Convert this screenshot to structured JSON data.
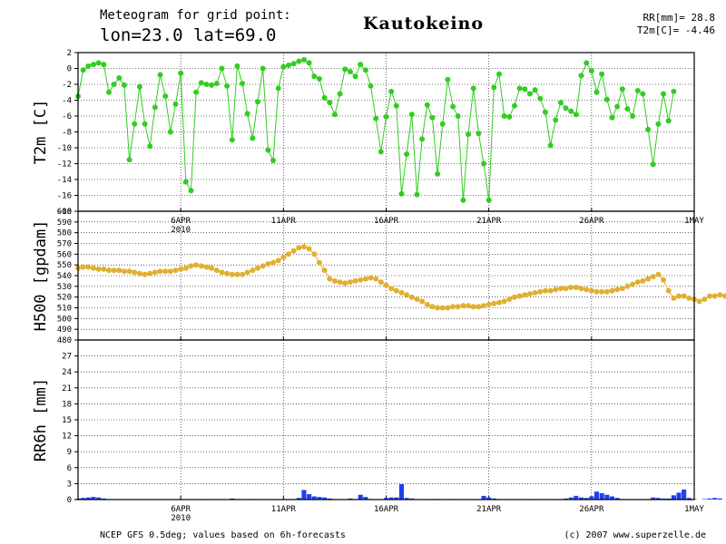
{
  "header": {
    "line1": "Meteogram for grid point:",
    "line2": "lon=23.0 lat=69.0",
    "location": "Kautokeino",
    "rr_label": "RR[mm]= 28.8",
    "t2m_label": "T2m[C]= -4.46"
  },
  "footer": {
    "left": "NCEP GFS 0.5deg; values based on 6h-forecasts",
    "right": "(c) 2007 www.superzelle.de"
  },
  "colors": {
    "t2m": "#33cc22",
    "h500": "#e0b030",
    "rr": "#1f3ff0"
  },
  "chart_data": [
    {
      "type": "line",
      "ylabel": "T2m [C]",
      "ylim": [
        -18,
        2
      ],
      "yticks": [
        2,
        0,
        -2,
        -4,
        -6,
        -8,
        -10,
        -12,
        -14,
        -16,
        -18
      ],
      "grid": true,
      "x_unit": "day of April 2010 (6h steps)",
      "xticks": [
        {
          "day": 6,
          "label": "6APR",
          "sublabel": "2010"
        },
        {
          "day": 11,
          "label": "11APR",
          "sublabel": ""
        },
        {
          "day": 16,
          "label": "16APR",
          "sublabel": ""
        },
        {
          "day": 21,
          "label": "21APR",
          "sublabel": ""
        },
        {
          "day": 26,
          "label": "26APR",
          "sublabel": ""
        },
        {
          "day": 31,
          "label": "1MAY",
          "sublabel": ""
        }
      ],
      "x_start": 1.0,
      "x_step": 0.25,
      "series": [
        {
          "values": [
            -3.5,
            -0.2,
            0.3,
            0.5,
            0.7,
            0.5,
            -3.0,
            -2.0,
            -1.2,
            -2.1,
            -11.5,
            -7.0,
            -2.3,
            -7.0,
            -9.8,
            -4.9,
            -0.8,
            -3.5,
            -8.0,
            -4.5,
            -0.6,
            -14.3,
            -15.4,
            -3.0,
            -1.8,
            -2.0,
            -2.1,
            -1.9,
            0.0,
            -2.2,
            -9.0,
            0.3,
            -1.9,
            -5.7,
            -8.8,
            -4.2,
            0.0,
            -10.3,
            -11.6,
            -2.5,
            0.2,
            0.4,
            0.6,
            0.9,
            1.1,
            0.7,
            -1.0,
            -1.3,
            -3.7,
            -4.3,
            -5.8,
            -3.2,
            -0.1,
            -0.4,
            -1.0,
            0.5,
            -0.2,
            -2.2,
            -6.3,
            -10.5,
            -6.1,
            -2.9,
            -4.7,
            -15.8,
            -10.8,
            -5.8,
            -15.9,
            -8.9,
            -4.6,
            -6.2,
            -13.3,
            -7.0,
            -1.4,
            -4.8,
            -6.0,
            -16.6,
            -8.3,
            -2.5,
            -8.2,
            -12.0,
            -16.6,
            -2.4,
            -0.7,
            -6.0,
            -6.1,
            -4.7,
            -2.5,
            -2.6,
            -3.2,
            -2.7,
            -3.8,
            -5.5,
            -9.7,
            -6.5,
            -4.3,
            -5.0,
            -5.4,
            -5.8,
            -0.9,
            0.7,
            -0.3,
            -3.0,
            -0.7,
            -3.9,
            -6.2,
            -4.8,
            -2.6,
            -5.1,
            -6.0,
            -2.8,
            -3.2,
            -7.7,
            -12.1,
            -7.0,
            -3.2,
            -6.6,
            -2.9
          ]
        }
      ]
    },
    {
      "type": "line",
      "ylabel": "H500 [gpdam]",
      "ylim": [
        480,
        600
      ],
      "yticks": [
        600,
        590,
        580,
        570,
        560,
        550,
        540,
        530,
        520,
        510,
        500,
        490,
        480
      ],
      "grid": true,
      "x_start": 1.0,
      "x_step": 0.25,
      "series": [
        {
          "values": [
            547,
            548,
            548,
            547,
            546,
            546,
            545,
            545,
            545,
            544,
            544,
            543,
            542,
            541,
            542,
            543,
            544,
            544,
            544,
            545,
            546,
            547,
            549,
            550,
            549,
            548,
            547,
            545,
            543,
            542,
            541,
            541,
            541,
            543,
            545,
            547,
            549,
            551,
            552,
            554,
            557,
            560,
            563,
            566,
            567,
            565,
            560,
            552,
            545,
            537,
            535,
            534,
            533,
            534,
            535,
            536,
            537,
            538,
            537,
            534,
            531,
            528,
            526,
            524,
            522,
            520,
            518,
            516,
            513,
            511,
            510,
            510,
            510,
            511,
            511,
            512,
            512,
            511,
            511,
            512,
            513,
            514,
            515,
            516,
            518,
            520,
            521,
            522,
            523,
            524,
            525,
            526,
            526,
            527,
            528,
            528,
            529,
            529,
            528,
            527,
            526,
            525,
            525,
            525,
            526,
            527,
            528,
            530,
            532,
            534,
            535,
            537,
            539,
            541,
            536,
            526,
            519,
            521,
            521,
            519,
            518,
            516,
            518,
            521,
            521,
            522,
            521,
            522,
            524,
            526,
            527,
            528,
            529,
            529
          ]
        }
      ]
    },
    {
      "type": "bar",
      "ylabel": "RR6h [mm]",
      "ylim": [
        0,
        30
      ],
      "yticks": [
        27,
        24,
        21,
        18,
        15,
        12,
        9,
        6,
        3,
        0
      ],
      "grid": true,
      "x_start": 1.0,
      "x_step": 0.25,
      "series": [
        {
          "values": [
            0.2,
            0.3,
            0.4,
            0.5,
            0.4,
            0.2,
            0.1,
            0,
            0,
            0,
            0,
            0,
            0,
            0,
            0,
            0,
            0,
            0,
            0,
            0,
            0.1,
            0,
            0,
            0,
            0.1,
            0,
            0,
            0,
            0,
            0,
            0.2,
            0.1,
            0,
            0,
            0.1,
            0,
            0,
            0,
            0.1,
            0,
            0,
            0,
            0.1,
            0.3,
            1.8,
            1.0,
            0.6,
            0.5,
            0.4,
            0.2,
            0.1,
            0,
            0,
            0.2,
            0.1,
            0.9,
            0.5,
            0.1,
            0,
            0,
            0.3,
            0.4,
            0.4,
            2.9,
            0.3,
            0.2,
            0,
            0,
            0,
            0.1,
            0.1,
            0,
            0,
            0.1,
            0,
            0,
            0,
            0,
            0.1,
            0.7,
            0.4,
            0.2,
            0.1,
            0,
            0,
            0,
            0,
            0,
            0.1,
            0,
            0,
            0,
            0,
            0,
            0.1,
            0.2,
            0.4,
            0.7,
            0.4,
            0.3,
            0.6,
            1.5,
            1.2,
            0.9,
            0.6,
            0.3,
            0.1,
            0,
            0.1,
            0,
            0,
            0.1,
            0.4,
            0.3,
            0.2,
            0.2,
            0.8,
            1.3,
            1.9,
            0.3,
            0.1,
            0,
            0.1,
            0.2,
            0.3,
            0.2,
            0,
            0.1,
            0.3,
            0.2,
            0.1,
            0,
            0,
            0.1,
            1.8,
            2.8
          ]
        }
      ]
    }
  ]
}
